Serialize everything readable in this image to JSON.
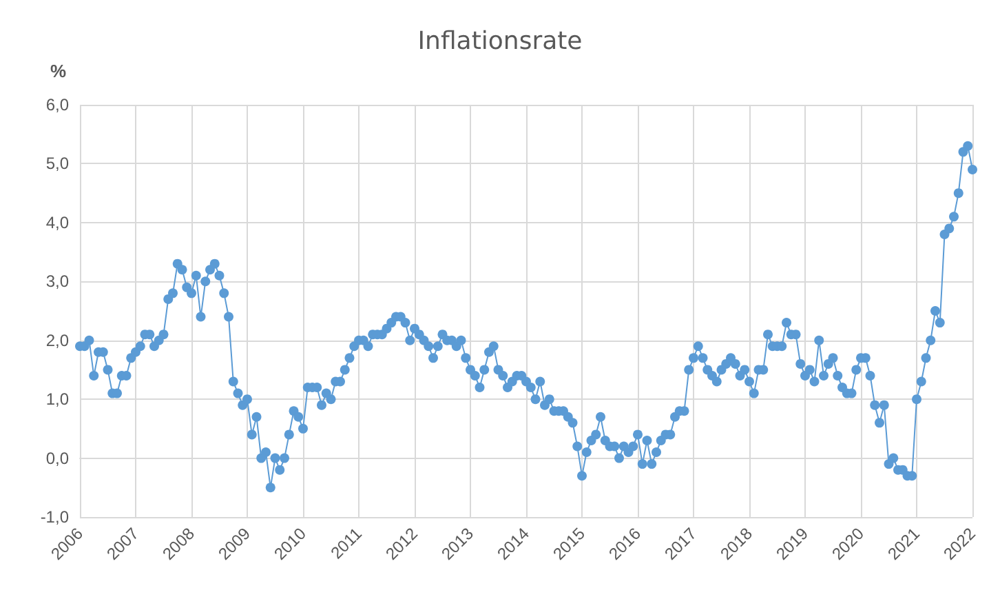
{
  "chart_data": {
    "type": "line",
    "title": "Inflationsrate",
    "ylabel": "%",
    "categories": [
      "2006",
      null,
      null,
      null,
      null,
      null,
      null,
      null,
      null,
      null,
      null,
      null,
      "2007",
      null,
      null,
      null,
      null,
      null,
      null,
      null,
      null,
      null,
      null,
      null,
      "2008",
      null,
      null,
      null,
      null,
      null,
      null,
      null,
      null,
      null,
      null,
      null,
      "2009",
      null,
      null,
      null,
      null,
      null,
      null,
      null,
      null,
      null,
      null,
      null,
      "2010",
      null,
      null,
      null,
      null,
      null,
      null,
      null,
      null,
      null,
      null,
      null,
      "2011",
      null,
      null,
      null,
      null,
      null,
      null,
      null,
      null,
      null,
      null,
      null,
      "2012",
      null,
      null,
      null,
      null,
      null,
      null,
      null,
      null,
      null,
      null,
      null,
      "2013",
      null,
      null,
      null,
      null,
      null,
      null,
      null,
      null,
      null,
      null,
      null,
      "2014",
      null,
      null,
      null,
      null,
      null,
      null,
      null,
      null,
      null,
      null,
      null,
      "2015",
      null,
      null,
      null,
      null,
      null,
      null,
      null,
      null,
      null,
      null,
      null,
      "2016",
      null,
      null,
      null,
      null,
      null,
      null,
      null,
      null,
      null,
      null,
      null,
      "2017",
      null,
      null,
      null,
      null,
      null,
      null,
      null,
      null,
      null,
      null,
      null,
      "2018",
      null,
      null,
      null,
      null,
      null,
      null,
      null,
      null,
      null,
      null,
      null,
      "2019",
      null,
      null,
      null,
      null,
      null,
      null,
      null,
      null,
      null,
      null,
      null,
      "2020",
      null,
      null,
      null,
      null,
      null,
      null,
      null,
      null,
      null,
      null,
      null,
      "2021",
      null,
      null,
      null,
      null,
      null,
      null,
      null,
      null,
      null,
      null,
      null,
      "2022"
    ],
    "series": [
      {
        "color": "#5b9bd5",
        "values": [
          1.9,
          1.9,
          2.0,
          1.4,
          1.8,
          1.8,
          1.5,
          1.1,
          1.1,
          1.4,
          1.4,
          1.7,
          1.8,
          1.9,
          2.1,
          2.1,
          1.9,
          2.0,
          2.1,
          2.7,
          2.8,
          3.3,
          3.2,
          2.9,
          2.8,
          3.1,
          2.4,
          3.0,
          3.2,
          3.3,
          3.1,
          2.8,
          2.4,
          1.3,
          1.1,
          0.9,
          1.0,
          0.4,
          0.7,
          0.0,
          0.1,
          -0.5,
          0.0,
          -0.2,
          0.0,
          0.4,
          0.8,
          0.7,
          0.5,
          1.2,
          1.2,
          1.2,
          0.9,
          1.1,
          1.0,
          1.3,
          1.3,
          1.5,
          1.7,
          1.9,
          2.0,
          2.0,
          1.9,
          2.1,
          2.1,
          2.1,
          2.2,
          2.3,
          2.4,
          2.4,
          2.3,
          2.0,
          2.2,
          2.1,
          2.0,
          1.9,
          1.7,
          1.9,
          2.1,
          2.0,
          2.0,
          1.9,
          2.0,
          1.7,
          1.5,
          1.4,
          1.2,
          1.5,
          1.8,
          1.9,
          1.5,
          1.4,
          1.2,
          1.3,
          1.4,
          1.4,
          1.3,
          1.2,
          1.0,
          1.3,
          0.9,
          1.0,
          0.8,
          0.8,
          0.8,
          0.7,
          0.6,
          0.2,
          -0.3,
          0.1,
          0.3,
          0.4,
          0.7,
          0.3,
          0.2,
          0.2,
          0.0,
          0.2,
          0.1,
          0.2,
          0.4,
          -0.1,
          0.3,
          -0.1,
          0.1,
          0.3,
          0.4,
          0.4,
          0.7,
          0.8,
          0.8,
          1.5,
          1.7,
          1.9,
          1.7,
          1.5,
          1.4,
          1.3,
          1.5,
          1.6,
          1.7,
          1.6,
          1.4,
          1.5,
          1.3,
          1.1,
          1.5,
          1.5,
          2.1,
          1.9,
          1.9,
          1.9,
          2.3,
          2.1,
          2.1,
          1.6,
          1.4,
          1.5,
          1.3,
          2.0,
          1.4,
          1.6,
          1.7,
          1.4,
          1.2,
          1.1,
          1.1,
          1.5,
          1.7,
          1.7,
          1.4,
          0.9,
          0.6,
          0.9,
          -0.1,
          0.0,
          -0.2,
          -0.2,
          -0.3,
          -0.3,
          1.0,
          1.3,
          1.7,
          2.0,
          2.5,
          2.3,
          3.8,
          3.9,
          4.1,
          4.5,
          5.2,
          5.3,
          4.9
        ]
      }
    ],
    "ylim": [
      -1,
      6
    ],
    "yticks": [
      {
        "value": -1,
        "label": "-1,0"
      },
      {
        "value": 0,
        "label": "0,0"
      },
      {
        "value": 1,
        "label": "1,0"
      },
      {
        "value": 2,
        "label": "2,0"
      },
      {
        "value": 3,
        "label": "3,0"
      },
      {
        "value": 4,
        "label": "4,0"
      },
      {
        "value": 5,
        "label": "5,0"
      },
      {
        "value": 6,
        "label": "6,0"
      }
    ],
    "grid": true,
    "marker": "circle",
    "line_style": "solid"
  }
}
